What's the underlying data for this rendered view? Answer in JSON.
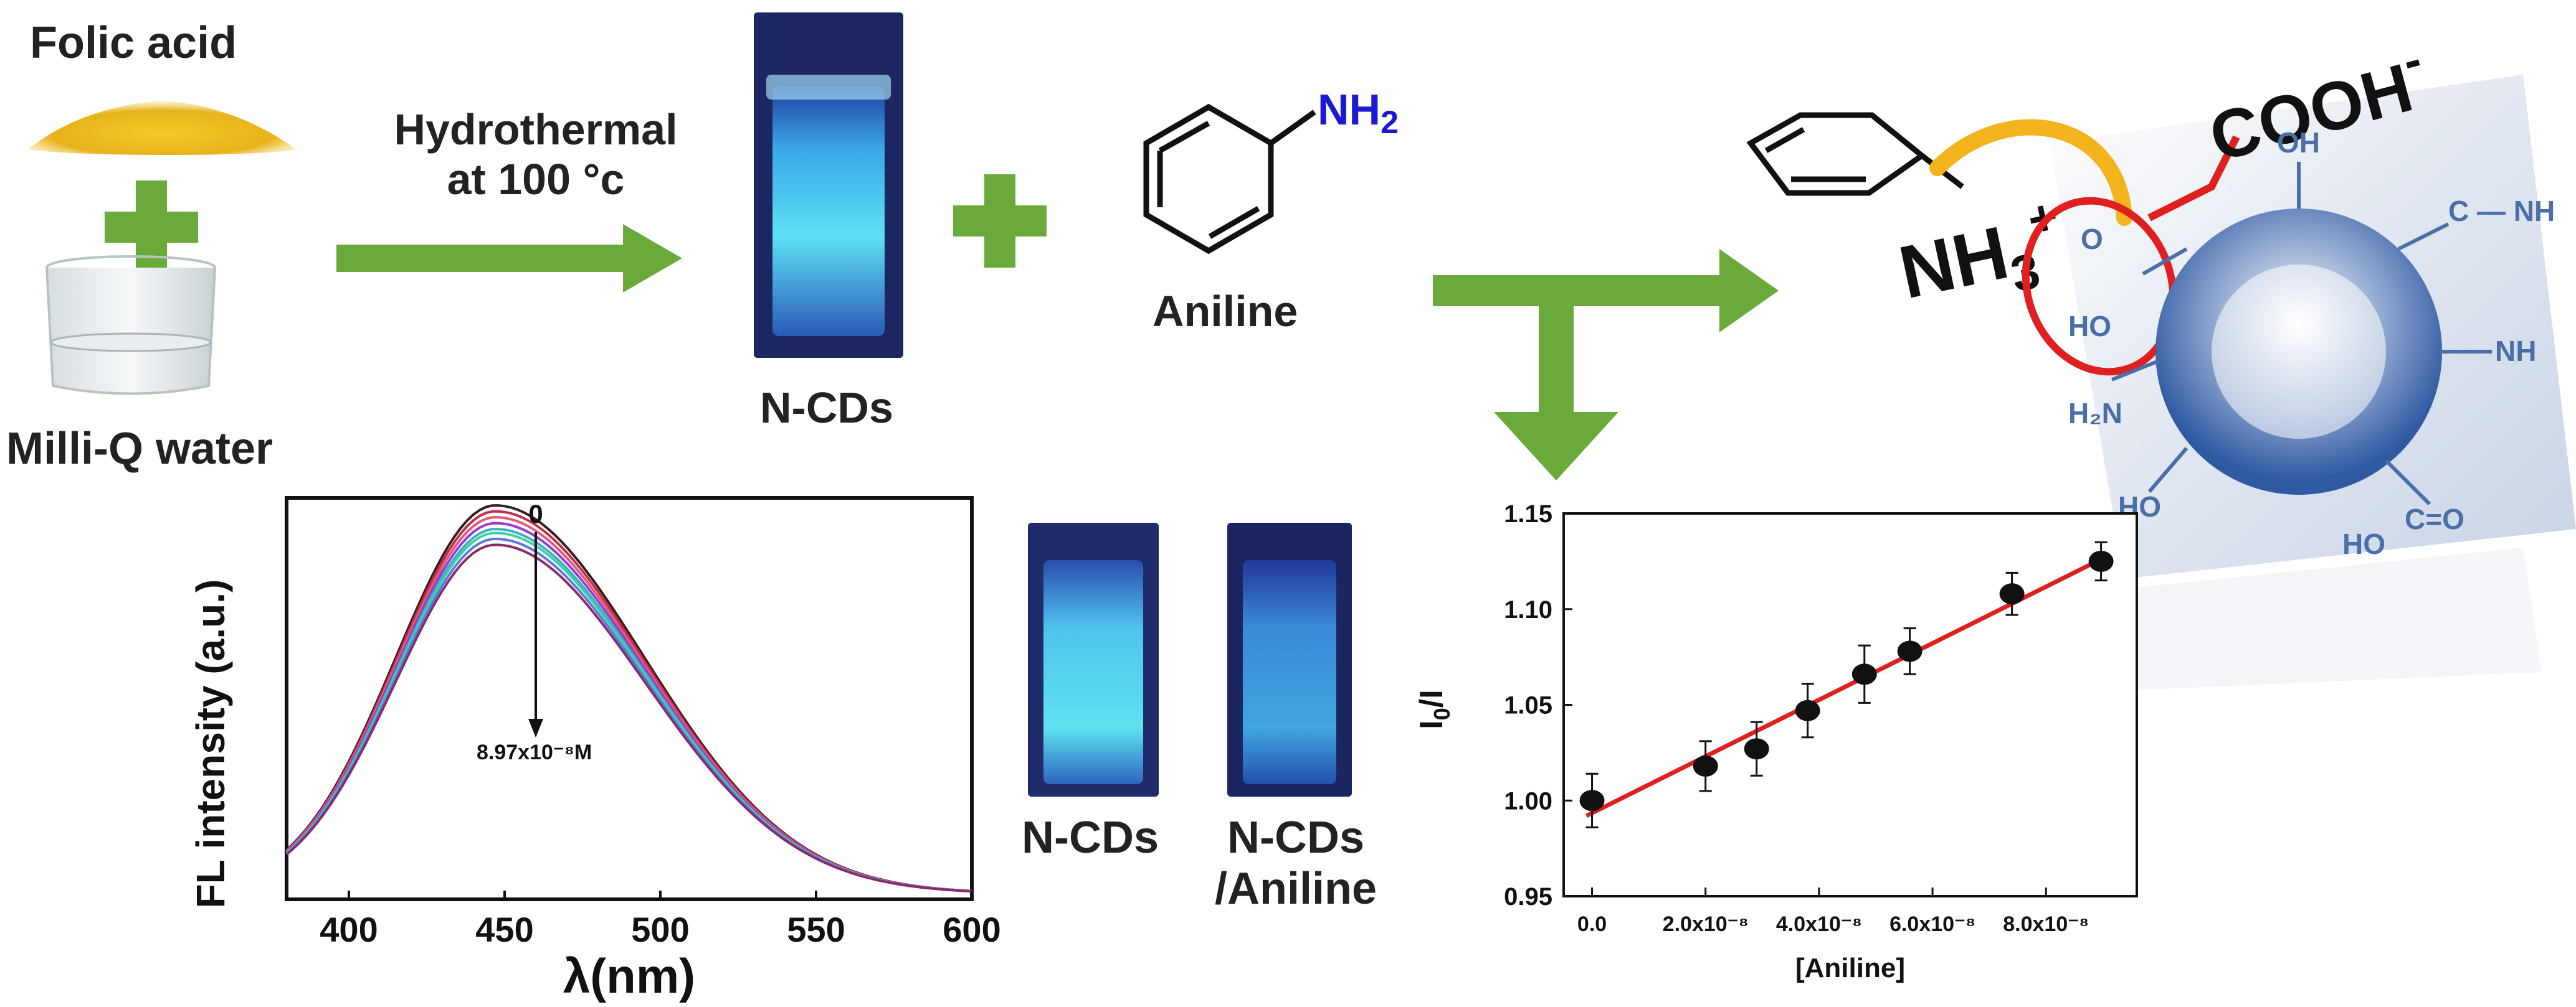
{
  "labels": {
    "folic_acid": "Folic acid",
    "milliq_water": "Milli-Q water",
    "hydrothermal_line1": "Hydrothermal",
    "hydrothermal_line2": "at 100 °c",
    "ncds_top": "N-CDs",
    "aniline_molecule_group": "NH",
    "aniline_molecule_sub": "2",
    "aniline_name": "Aniline",
    "nh3_group": "NH",
    "nh3_sub": "3",
    "nh3_charge": "+",
    "cooh": "COOH",
    "cooh_charge": "-",
    "cuvette_ncds": "N-CDs",
    "cuvette_ncds_aniline_1": "N-CDs",
    "cuvette_ncds_aniline_2": "/Aniline",
    "cd_groups": {
      "oh_top": "OH",
      "oh_left": "HO",
      "c_o_top": "O",
      "c_nh_top": "C — NH",
      "nh2_right": "NH",
      "h2n_left": "H₂N",
      "ho_bottom": "HO",
      "c_o_bottom": "C=O",
      "ho_bottom2": "HO"
    }
  },
  "colors": {
    "arrow": "#6aaa3a",
    "cuvette_glow": "#40c8f0",
    "highlight_circle": "#e02020",
    "linker_yellow": "#f2b31c",
    "cd_blue": "#4a6fa8"
  },
  "chart_data": [
    {
      "type": "line",
      "title": "",
      "xlabel": "λ(nm)",
      "ylabel": "FL intensity (a.u.)",
      "xlim": [
        380,
        600
      ],
      "xticks": [
        "400",
        "450",
        "500",
        "550",
        "600"
      ],
      "xtick_values": [
        400,
        450,
        500,
        550,
        600
      ],
      "annotation_top": "0",
      "annotation_bottom": "8.97x10⁻⁸M",
      "peak_x": 447,
      "series": [
        {
          "color": "#3a1a1a",
          "peak": 1.0
        },
        {
          "color": "#c0304a",
          "peak": 0.985
        },
        {
          "color": "#e05a7a",
          "peak": 0.97
        },
        {
          "color": "#9a3ad0",
          "peak": 0.955
        },
        {
          "color": "#3ab0c8",
          "peak": 0.94
        },
        {
          "color": "#40d0a0",
          "peak": 0.93
        },
        {
          "color": "#5a7ae0",
          "peak": 0.915
        },
        {
          "color": "#8a2a6a",
          "peak": 0.9
        }
      ]
    },
    {
      "type": "scatter",
      "title": "",
      "xlabel": "[Aniline]",
      "ylabel": "I0/I",
      "ylabel_main": "I",
      "ylabel_sub": "0",
      "ylabel_tail": "/I",
      "xlim": [
        -0.5,
        9.6
      ],
      "ylim": [
        0.95,
        1.15
      ],
      "xticks": [
        "0.0",
        "2.0x10⁻⁸",
        "4.0x10⁻⁸",
        "6.0x10⁻⁸",
        "8.0x10⁻⁸"
      ],
      "xtick_values": [
        0,
        2,
        4,
        6,
        8
      ],
      "yticks": [
        "0.95",
        "1.00",
        "1.05",
        "1.10",
        "1.15"
      ],
      "ytick_values": [
        0.95,
        1.0,
        1.05,
        1.1,
        1.15
      ],
      "x_unit_scale": "x10⁻⁸",
      "points": [
        {
          "x": 0.0,
          "y": 1.0,
          "err": 0.014
        },
        {
          "x": 2.0,
          "y": 1.018,
          "err": 0.013
        },
        {
          "x": 2.9,
          "y": 1.027,
          "err": 0.014
        },
        {
          "x": 3.8,
          "y": 1.047,
          "err": 0.014
        },
        {
          "x": 4.8,
          "y": 1.066,
          "err": 0.015
        },
        {
          "x": 5.6,
          "y": 1.078,
          "err": 0.012
        },
        {
          "x": 7.4,
          "y": 1.108,
          "err": 0.011
        },
        {
          "x": 8.97,
          "y": 1.125,
          "err": 0.01
        }
      ],
      "fit": {
        "x0": -0.1,
        "y0": 0.992,
        "x1": 9.1,
        "y1": 1.128,
        "color": "#e02020"
      }
    }
  ]
}
